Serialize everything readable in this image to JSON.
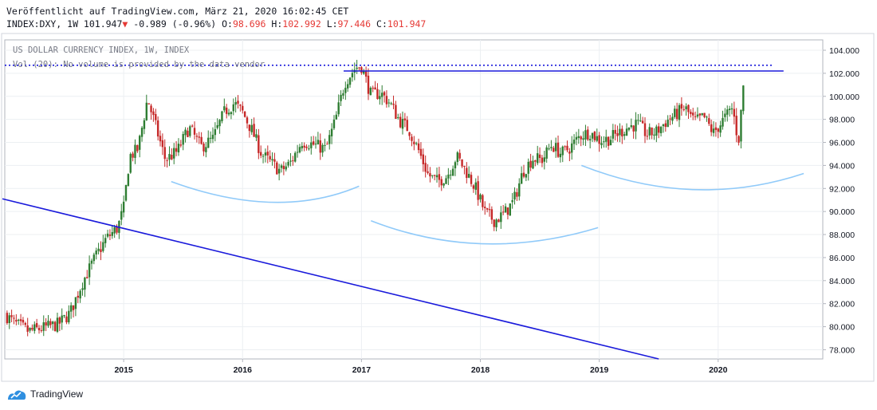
{
  "header": {
    "published": "Veröffentlicht auf TradingView.com, März 21, 2020 16:02:45 CET",
    "symbol_line_prefix": "INDEX:DXY, 1W 101.947",
    "change_arrow": "▼",
    "change": "-0.989 (-0.96%)",
    "o_label": "O:",
    "o_value": "98.696",
    "h_label": "H:",
    "h_value": "102.992",
    "l_label": "L:",
    "l_value": "97.446",
    "c_label": "C:",
    "c_value": "101.947"
  },
  "legend": {
    "title": "US DOLLAR CURRENCY INDEX, 1W, INDEX",
    "volume": "Vol (20): No volume is provided by the data vendor"
  },
  "footer": {
    "brand": "TradingView"
  },
  "colors": {
    "up": "#26a69a",
    "down": "#ef5350",
    "candle_up_fill": "#2e7d32",
    "candle_down_fill": "#c62828",
    "trendline": "#1a1adb",
    "arc": "#90caf9",
    "grid": "#eceff2",
    "border": "#b2b5be"
  },
  "chart_data": {
    "type": "candlestick",
    "title": "US DOLLAR CURRENCY INDEX, 1W, INDEX",
    "ylim": [
      77.2,
      104.9
    ],
    "yticks": [
      "104.000",
      "102.000",
      "100.000",
      "98.000",
      "96.000",
      "94.000",
      "92.000",
      "90.000",
      "88.000",
      "86.000",
      "84.000",
      "82.000",
      "80.000",
      "78.000"
    ],
    "xticks": [
      "2015",
      "2016",
      "2017",
      "2018",
      "2019",
      "2020"
    ],
    "grid": true,
    "price_path": [
      [
        2014.0,
        81.1
      ],
      [
        2014.08,
        80.3
      ],
      [
        2014.2,
        79.6
      ],
      [
        2014.33,
        79.9
      ],
      [
        2014.45,
        80.2
      ],
      [
        2014.55,
        81.2
      ],
      [
        2014.65,
        83.8
      ],
      [
        2014.75,
        85.8
      ],
      [
        2014.85,
        87.6
      ],
      [
        2014.95,
        88.6
      ],
      [
        2015.0,
        90.3
      ],
      [
        2015.05,
        94.8
      ],
      [
        2015.12,
        95.4
      ],
      [
        2015.2,
        99.8
      ],
      [
        2015.28,
        97.0
      ],
      [
        2015.35,
        94.5
      ],
      [
        2015.45,
        95.2
      ],
      [
        2015.55,
        97.3
      ],
      [
        2015.65,
        95.6
      ],
      [
        2015.75,
        96.3
      ],
      [
        2015.85,
        98.7
      ],
      [
        2015.93,
        99.4
      ],
      [
        2016.0,
        98.6
      ],
      [
        2016.08,
        97.0
      ],
      [
        2016.16,
        95.0
      ],
      [
        2016.24,
        94.2
      ],
      [
        2016.32,
        93.5
      ],
      [
        2016.4,
        94.2
      ],
      [
        2016.5,
        96.1
      ],
      [
        2016.6,
        95.8
      ],
      [
        2016.7,
        95.4
      ],
      [
        2016.78,
        97.9
      ],
      [
        2016.86,
        101.2
      ],
      [
        2016.95,
        102.5
      ],
      [
        2017.0,
        102.6
      ],
      [
        2017.08,
        100.1
      ],
      [
        2017.16,
        100.3
      ],
      [
        2017.24,
        99.4
      ],
      [
        2017.32,
        97.9
      ],
      [
        2017.4,
        97.1
      ],
      [
        2017.48,
        95.3
      ],
      [
        2017.56,
        93.2
      ],
      [
        2017.64,
        92.6
      ],
      [
        2017.72,
        93.1
      ],
      [
        2017.8,
        94.8
      ],
      [
        2017.88,
        93.5
      ],
      [
        2017.96,
        92.0
      ],
      [
        2018.04,
        89.9
      ],
      [
        2018.12,
        89.2
      ],
      [
        2018.2,
        89.8
      ],
      [
        2018.28,
        90.9
      ],
      [
        2018.36,
        93.5
      ],
      [
        2018.44,
        94.6
      ],
      [
        2018.52,
        94.5
      ],
      [
        2018.6,
        95.8
      ],
      [
        2018.68,
        95.0
      ],
      [
        2018.76,
        95.6
      ],
      [
        2018.84,
        96.6
      ],
      [
        2018.92,
        96.9
      ],
      [
        2019.0,
        96.2
      ],
      [
        2019.08,
        96.3
      ],
      [
        2019.16,
        96.8
      ],
      [
        2019.24,
        97.3
      ],
      [
        2019.32,
        97.6
      ],
      [
        2019.4,
        96.7
      ],
      [
        2019.48,
        96.9
      ],
      [
        2019.56,
        97.8
      ],
      [
        2019.64,
        98.4
      ],
      [
        2019.72,
        99.0
      ],
      [
        2019.8,
        97.8
      ],
      [
        2019.88,
        98.2
      ],
      [
        2019.96,
        96.8
      ],
      [
        2020.04,
        97.9
      ],
      [
        2020.12,
        99.0
      ],
      [
        2020.17,
        96.0
      ],
      [
        2020.2,
        99.5
      ],
      [
        2020.22,
        102.0
      ]
    ],
    "annotations": {
      "trendline": [
        [
          2013.98,
          91.1
        ],
        [
          2019.5,
          77.2
        ]
      ],
      "resistance_solid": {
        "x0": 2016.85,
        "x1": 2020.55,
        "y": 102.2
      },
      "resistance_dotted": {
        "x0": 2014.0,
        "x1": 2020.47,
        "y": 102.7
      },
      "arcs": [
        [
          [
            2015.4,
            92.6
          ],
          [
            2016.3,
            90.8
          ],
          [
            2016.98,
            92.2
          ]
        ],
        [
          [
            2017.08,
            89.2
          ],
          [
            2018.0,
            87.2
          ],
          [
            2018.99,
            88.6
          ]
        ],
        [
          [
            2018.85,
            94.0
          ],
          [
            2019.8,
            91.9
          ],
          [
            2020.72,
            93.3
          ]
        ]
      ]
    }
  }
}
